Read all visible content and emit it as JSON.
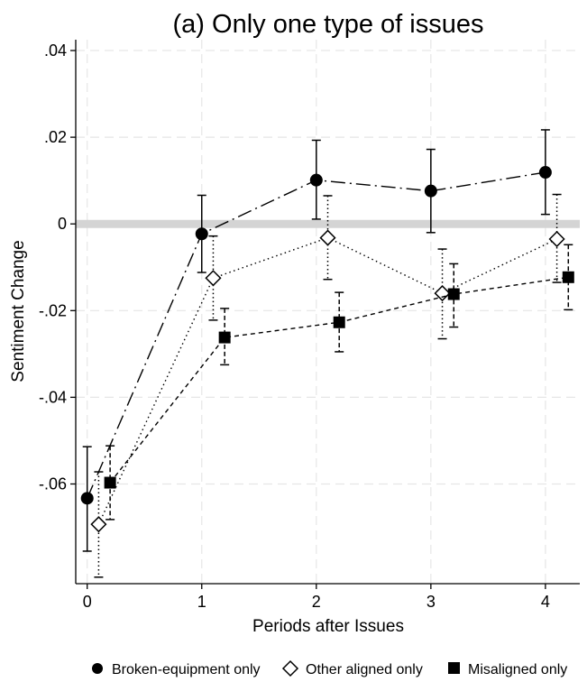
{
  "chart_data": {
    "type": "line",
    "title": "(a) Only one type of issues",
    "xlabel": "Periods after Issues",
    "ylabel": "Sentiment Change",
    "x_ticks": [
      0,
      1,
      2,
      3,
      4
    ],
    "x_tick_labels": [
      "0",
      "1",
      "2",
      "3",
      "4"
    ],
    "y_ticks": [
      0.04,
      0.02,
      0,
      -0.02,
      -0.04,
      -0.06
    ],
    "y_tick_labels": [
      ".04",
      ".02",
      "0",
      "-.02",
      "-.04",
      "-.06"
    ],
    "xlim": [
      -0.1,
      4.3
    ],
    "ylim": [
      -0.083,
      0.0425
    ],
    "reference_line": 0,
    "grid": true,
    "legend_position": "bottom",
    "series": [
      {
        "name": "Broken-equipment only",
        "marker": "filled-circle",
        "line_style": "long-dash-dot",
        "x": [
          0,
          1,
          2,
          3,
          4
        ],
        "y": [
          -0.0633,
          -0.0023,
          0.0101,
          0.0076,
          0.0119
        ],
        "ci_low": [
          -0.0755,
          -0.0112,
          0.0011,
          -0.002,
          0.0022
        ],
        "ci_high": [
          -0.0514,
          0.0066,
          0.0193,
          0.0172,
          0.0217
        ]
      },
      {
        "name": "Other aligned only",
        "marker": "hollow-diamond",
        "line_style": "dotted",
        "x": [
          0.1,
          1.1,
          2.1,
          3.1,
          4.1
        ],
        "y": [
          -0.0693,
          -0.0125,
          -0.0032,
          -0.016,
          -0.0035
        ],
        "ci_low": [
          -0.0815,
          -0.0222,
          -0.0128,
          -0.0265,
          -0.0135
        ],
        "ci_high": [
          -0.0572,
          -0.0028,
          0.0065,
          -0.0058,
          0.0068
        ]
      },
      {
        "name": "Misaligned only",
        "marker": "filled-square",
        "line_style": "short-dash",
        "x": [
          0.2,
          1.2,
          2.2,
          3.2,
          4.2
        ],
        "y": [
          -0.0597,
          -0.0262,
          -0.0227,
          -0.0162,
          -0.0123
        ],
        "ci_low": [
          -0.0682,
          -0.0325,
          -0.0295,
          -0.0238,
          -0.0198
        ],
        "ci_high": [
          -0.0512,
          -0.0195,
          -0.0158,
          -0.0092,
          -0.0048
        ]
      }
    ]
  }
}
